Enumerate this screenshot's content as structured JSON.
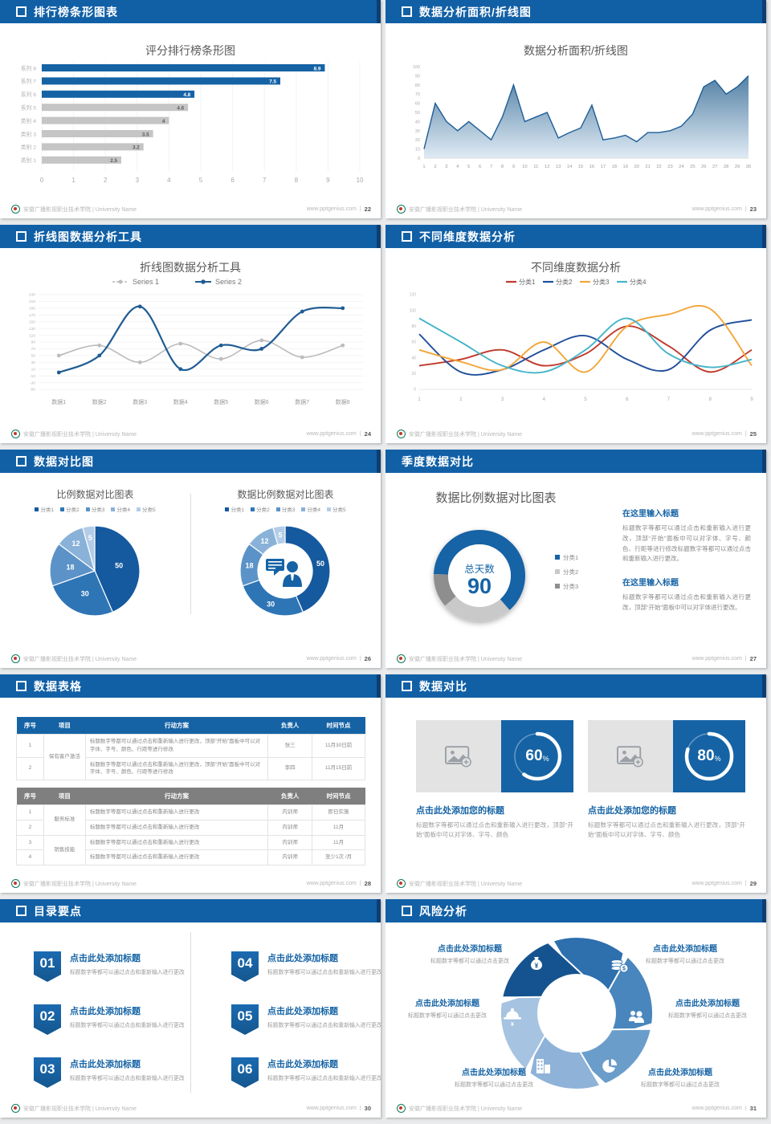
{
  "footer": {
    "org": "安徽广播影视职业技术学院 | University Name",
    "site": "www.pptgenius.com",
    "sep": "|"
  },
  "slides": {
    "s1": {
      "header": "排行榜条形图表",
      "page": "22"
    },
    "s2": {
      "header": "数据分析面积/折线图",
      "page": "23"
    },
    "s3": {
      "header": "折线图数据分析工具",
      "page": "24"
    },
    "s4": {
      "header": "不同维度数据分析",
      "page": "25"
    },
    "s5": {
      "header": "数据对比图",
      "page": "26"
    },
    "s6": {
      "header": "季度数据对比",
      "page": "27",
      "sections": [
        {
          "h": "在这里输入标题",
          "p": "标题数字等都可以通过点击和重新输入进行更改，顶部“开始”面板中可以对字体、字号、颜色、行距等进行修改标题数字等都可以通过点击和重新输入进行更改。"
        },
        {
          "h": "在这里输入标题",
          "p": "标题数字等都可以通过点击和重新输入进行更改，顶部“开始”面板中可以对字体进行更改。"
        }
      ]
    },
    "s7": {
      "header": "数据表格",
      "page": "28",
      "columns": [
        "序号",
        "项目",
        "行动方案",
        "负责人",
        "时间节点"
      ],
      "t1": {
        "g": "保有客户激活",
        "r1": {
          "no": "1",
          "act": "标题数字等都可以通过点击和重新输入进行更改，顶部“开始”面板中可以对字体、字号、颜色、行距等进行修改",
          "who": "张三",
          "when": "11月30日前"
        },
        "r2": {
          "no": "2",
          "act": "标题数字等都可以通过点击和重新输入进行更改，顶部“开始”面板中可以对字体、字号、颜色、行距等进行修改",
          "who": "李四",
          "when": "11月15日前"
        }
      },
      "t2": {
        "g1": "服务标准",
        "g2": "销售技能",
        "r1": {
          "no": "1",
          "act": "标题数字等都可以通过点击和重新输入进行更改",
          "who": "内训师",
          "when": "即日实施"
        },
        "r2": {
          "no": "2",
          "act": "标题数字等都可以通过点击和重新输入进行更改",
          "who": "内训师",
          "when": "11月"
        },
        "r3": {
          "no": "3",
          "act": "标题数字等都可以通过点击和重新输入进行更改",
          "who": "内训师",
          "when": "11月"
        },
        "r4": {
          "no": "4",
          "act": "标题数字等都可以通过点击和重新输入进行更改",
          "who": "内训师",
          "when": "至少1次 /月"
        }
      }
    },
    "s8": {
      "header": "数据对比",
      "page": "29",
      "cards": [
        {
          "pct": "60",
          "sym": "%",
          "title": "点击此处添加您的标题",
          "desc": "标题数字等都可以通过点击和重新输入进行更改，顶部“开始”面板中可以对字体、字号、颜色"
        },
        {
          "pct": "80",
          "sym": "%",
          "title": "点击此处添加您的标题",
          "desc": "标题数字等都可以通过点击和重新输入进行更改，顶部“开始”面板中可以对字体、字号、颜色"
        }
      ]
    },
    "s9": {
      "header": "目录要点",
      "page": "30",
      "items": [
        {
          "num": "01",
          "title": "点击此处添加标题",
          "desc": "标题数字等都可以通过点击和重新输入进行更改"
        },
        {
          "num": "02",
          "title": "点击此处添加标题",
          "desc": "标题数字等都可以通过点击和重新输入进行更改"
        },
        {
          "num": "03",
          "title": "点击此处添加标题",
          "desc": "标题数字等都可以通过点击和重新输入进行更改"
        },
        {
          "num": "04",
          "title": "点击此处添加标题",
          "desc": "标题数字等都可以通过点击和重新输入进行更改"
        },
        {
          "num": "05",
          "title": "点击此处添加标题",
          "desc": "标题数字等都可以通过点击和重新输入进行更改"
        },
        {
          "num": "06",
          "title": "点击此处添加标题",
          "desc": "标题数字等都可以通过点击和重新输入进行更改"
        }
      ]
    },
    "s10": {
      "header": "风险分析",
      "page": "31",
      "labels": [
        {
          "title": "点击此处添加标题",
          "desc": "标题数字等都可以通过点击更改"
        },
        {
          "title": "点击此处添加标题",
          "desc": "标题数字等都可以通过点击更改"
        },
        {
          "title": "点击此处添加标题",
          "desc": "标题数字等都可以通过点击更改"
        },
        {
          "title": "点击此处添加标题",
          "desc": "标题数字等都可以通过点击更改"
        },
        {
          "title": "点击此处添加标题",
          "desc": "标题数字等都可以通过点击更改"
        },
        {
          "title": "点击此处添加标题",
          "desc": "标题数字等都可以通过点击更改"
        }
      ],
      "icons": [
        "money-bag",
        "coins",
        "people",
        "pie-chart",
        "building",
        "helmet"
      ]
    }
  },
  "chart_data": [
    {
      "id": "bar-ranking",
      "type": "bar",
      "orientation": "horizontal",
      "title": "评分排行榜条形图",
      "categories": [
        "系列 8",
        "系列 7",
        "系列 6",
        "系列 5",
        "类别 4",
        "类别 3",
        "类别 2",
        "类别 1"
      ],
      "values": [
        8.9,
        7.5,
        4.8,
        4.6,
        4,
        3.5,
        3.2,
        2.5
      ],
      "xlim": [
        0,
        10
      ],
      "xtick": 1,
      "highlight_count": 3,
      "highlight_color": "#1563a5",
      "bar_color": "#c5c5c5"
    },
    {
      "id": "area-analysis",
      "type": "area",
      "title": "数据分析面积/折线图",
      "x": [
        1,
        2,
        3,
        4,
        5,
        6,
        7,
        8,
        9,
        10,
        11,
        12,
        13,
        14,
        15,
        16,
        17,
        18,
        19,
        20,
        21,
        22,
        23,
        24,
        25,
        26,
        27,
        28,
        29,
        30
      ],
      "values": [
        10,
        60,
        40,
        30,
        40,
        30,
        20,
        45,
        80,
        40,
        45,
        50,
        22,
        28,
        33,
        58,
        20,
        22,
        25,
        18,
        28,
        28,
        30,
        35,
        48,
        78,
        85,
        70,
        78,
        90
      ],
      "ylim": [
        0,
        100
      ],
      "ytick": 10,
      "line_color": "#1d5d97",
      "fill_top": "#49799f",
      "fill_bottom": "#dbe8f3"
    },
    {
      "id": "line-tool",
      "type": "line",
      "title": "折线图数据分析工具",
      "categories": [
        "数据1",
        "数据2",
        "数据3",
        "数据4",
        "数据5",
        "数据6",
        "数据7",
        "数据8"
      ],
      "series": [
        {
          "name": "Series 1",
          "color": "#bcbcbc",
          "values": [
            50,
            80,
            30,
            85,
            40,
            95,
            45,
            80
          ]
        },
        {
          "name": "Series 2",
          "color": "#1f5c94",
          "values": [
            0,
            50,
            195,
            10,
            80,
            70,
            180,
            190
          ]
        }
      ],
      "ylim": [
        -50,
        230
      ],
      "ytick": 20,
      "markers": true,
      "grid": true
    },
    {
      "id": "line-dims",
      "type": "line",
      "title": "不同维度数据分析",
      "x": [
        1,
        2,
        3,
        4,
        5,
        6,
        7,
        8,
        9
      ],
      "series": [
        {
          "name": "分类1",
          "color": "#c0392b",
          "values": [
            30,
            38,
            50,
            30,
            45,
            80,
            55,
            22,
            50
          ]
        },
        {
          "name": "分类2",
          "color": "#1f4e9c",
          "values": [
            70,
            22,
            25,
            50,
            68,
            38,
            25,
            75,
            88
          ]
        },
        {
          "name": "分类3",
          "color": "#f2a63a",
          "values": [
            50,
            35,
            25,
            60,
            22,
            80,
            95,
            102,
            30
          ]
        },
        {
          "name": "分类4",
          "color": "#45b5c9",
          "values": [
            90,
            60,
            30,
            22,
            50,
            90,
            45,
            28,
            38
          ]
        }
      ],
      "ylim": [
        0,
        120
      ],
      "ytick": 20,
      "markers": false,
      "grid": false
    },
    {
      "id": "pie-compare",
      "type": "pie",
      "title": "比例数据对比图表",
      "labels": [
        "分类1",
        "分类2",
        "分类3",
        "分类4",
        "分类5"
      ],
      "values": [
        50,
        30,
        18,
        12,
        5
      ],
      "colors": [
        "#15599f",
        "#2e75b6",
        "#5b93c8",
        "#8ab2d9",
        "#b3cde8"
      ]
    },
    {
      "id": "donut-compare",
      "type": "pie",
      "donut": true,
      "title": "数据比例数据对比图表",
      "labels": [
        "分类1",
        "分类2",
        "分类3",
        "分类4",
        "分类5"
      ],
      "values": [
        50,
        30,
        18,
        12,
        5
      ],
      "colors": [
        "#15599f",
        "#2e75b6",
        "#5b93c8",
        "#8ab2d9",
        "#b3cde8"
      ],
      "center_icon": "person-with-speech-bubble"
    },
    {
      "id": "donut-days",
      "type": "pie",
      "donut": true,
      "labels": [
        "分类1",
        "分类2",
        "分类3"
      ],
      "values": [
        63,
        25,
        12
      ],
      "start_angle": 272,
      "colors": [
        "#1563a5",
        "#c9c9c9",
        "#8e8e8e"
      ],
      "center": {
        "label": "总天数",
        "value": "90"
      }
    },
    {
      "id": "progress-60",
      "type": "progress",
      "value": 60
    },
    {
      "id": "progress-80",
      "type": "progress",
      "value": 80
    }
  ]
}
